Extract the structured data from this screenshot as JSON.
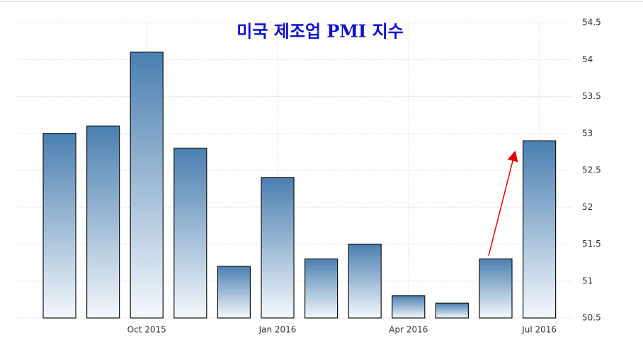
{
  "chart_data": {
    "type": "bar",
    "title": "미국 제조업 PMI 지수",
    "categories": [
      null,
      null,
      "Oct 2015",
      null,
      null,
      "Jan 2016",
      null,
      null,
      "Apr 2016",
      null,
      null,
      "Jul 2016"
    ],
    "values": [
      53.0,
      53.1,
      54.1,
      52.8,
      51.2,
      52.4,
      51.3,
      51.5,
      50.8,
      50.7,
      51.3,
      52.9
    ],
    "color": "#4a7fb0",
    "ylim": [
      50.5,
      54.5
    ],
    "yticks": [
      50.5,
      51,
      51.5,
      52,
      52.5,
      53,
      53.5,
      54,
      54.5
    ],
    "grid": true
  }
}
